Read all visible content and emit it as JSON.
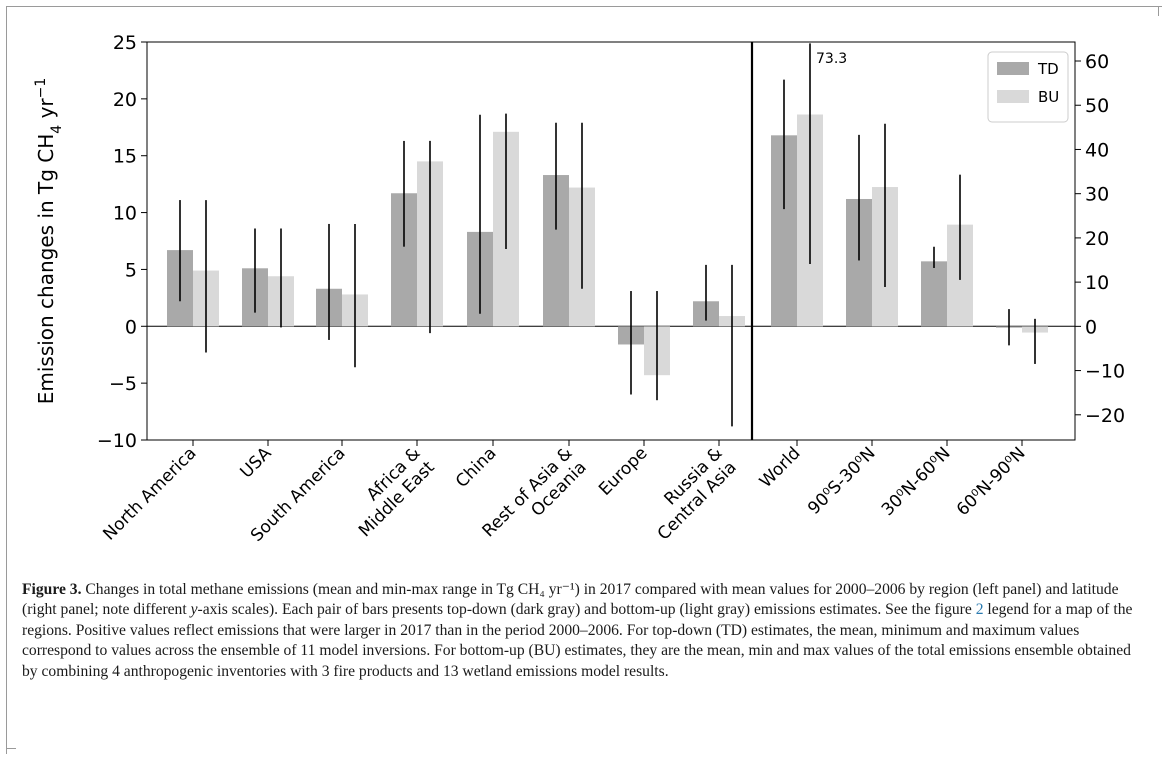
{
  "chart_data": {
    "type": "bar",
    "left_panel": {
      "categories": [
        "North America",
        "USA",
        "South America",
        "Africa & Middle East",
        "China",
        "Rest of Asia & Oceania",
        "Europe",
        "Russia & Central Asia"
      ],
      "series": [
        {
          "name": "TD",
          "color": "#a9a9a9",
          "values": [
            6.7,
            5.1,
            3.3,
            11.7,
            8.3,
            13.3,
            -1.6,
            2.2
          ],
          "min": [
            2.2,
            1.2,
            -1.2,
            7.0,
            1.1,
            8.5,
            -6.0,
            0.5
          ],
          "max": [
            11.1,
            8.6,
            9.0,
            16.3,
            18.6,
            17.9,
            3.1,
            5.4
          ]
        },
        {
          "name": "BU",
          "color": "#d9d9d9",
          "values": [
            4.9,
            4.4,
            2.8,
            14.5,
            17.1,
            12.2,
            -4.3,
            0.9
          ],
          "min": [
            -2.3,
            -0.1,
            -3.6,
            -0.6,
            6.8,
            3.3,
            -6.5,
            -8.8
          ],
          "max": [
            11.1,
            8.6,
            9.0,
            16.3,
            18.7,
            17.9,
            3.1,
            5.4
          ]
        }
      ],
      "ylabel": "Emission changes in Tg CH$_4$ yr$^{-1}$",
      "ylim": [
        -10,
        25
      ],
      "yticks": [
        "25",
        "20",
        "15",
        "10",
        "5",
        "0",
        "−5",
        "−10"
      ]
    },
    "right_panel": {
      "categories": [
        "World",
        "90⁰S-30⁰N",
        "30⁰N-60⁰N",
        "60⁰N-90⁰N"
      ],
      "series": [
        {
          "name": "TD",
          "color": "#a9a9a9",
          "values": [
            43.2,
            28.8,
            14.7,
            -0.3
          ],
          "min": [
            26.5,
            14.9,
            13.2,
            -4.3
          ],
          "max": [
            55.8,
            43.3,
            18.0,
            3.9
          ]
        },
        {
          "name": "BU",
          "color": "#d9d9d9",
          "values": [
            47.9,
            31.5,
            23.0,
            -1.4
          ],
          "min": [
            14.1,
            8.9,
            10.5,
            -8.5
          ],
          "max": [
            64.0,
            45.8,
            34.3,
            1.7
          ]
        }
      ],
      "ylim": [
        -25.7,
        64.3
      ],
      "yticks": [
        "60",
        "50",
        "40",
        "30",
        "20",
        "10",
        "0",
        "−10",
        "−20"
      ],
      "annotation": "73.3"
    },
    "legend": {
      "position": "top-right",
      "entries": [
        "TD",
        "BU"
      ]
    }
  },
  "caption": {
    "label": "Figure 3.",
    "part1": "Changes in total methane emissions (mean and min-max range in Tg CH₄ yr⁻¹) in 2017 compared with mean values for 2000–2006 by region (left panel) and latitude (right panel; note different ",
    "y_italic": "y",
    "part2": "-axis scales). Each pair of bars presents top-down (dark gray) and bottom-up (light gray) emissions estimates. See the figure ",
    "link": "2",
    "part3": " legend for a map of the regions. Positive values reflect emissions that were larger in 2017 than in the period 2000–2006. For top-down (TD) estimates, the mean, minimum and maximum values correspond to values across the ensemble of 11 model inversions. For bottom-up (BU) estimates, they are the mean, min and max values of the total emissions ensemble obtained by combining 4 anthropogenic inventories with 3 fire products and 13 wetland emissions model results."
  }
}
